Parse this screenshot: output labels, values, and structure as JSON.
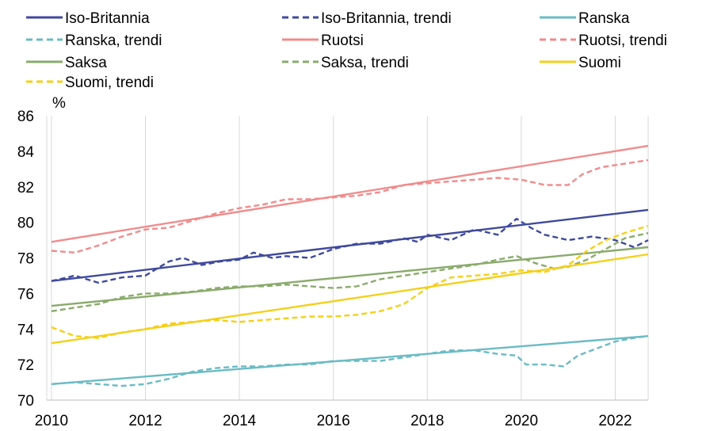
{
  "chart_data": {
    "type": "line",
    "title": "",
    "xlabel": "",
    "ylabel": "%",
    "xlim": [
      2009.9,
      2022.7
    ],
    "ylim": [
      70,
      86
    ],
    "x_ticks": [
      2010,
      2012,
      2014,
      2016,
      2018,
      2020,
      2022
    ],
    "y_ticks": [
      70,
      72,
      74,
      76,
      78,
      80,
      82,
      84,
      86
    ],
    "grid": "vertical",
    "legend": "top",
    "series": [
      {
        "name": "Iso-Britannia",
        "color": "#3f4a9c",
        "dashed": false,
        "points": [
          [
            2010,
            76.7
          ],
          [
            2022.7,
            80.7
          ]
        ]
      },
      {
        "name": "Iso-Britannia, trendi",
        "color": "#3f4a9c",
        "dashed": true,
        "points": [
          [
            2010,
            76.7
          ],
          [
            2010.5,
            77.0
          ],
          [
            2011,
            76.6
          ],
          [
            2011.5,
            76.9
          ],
          [
            2012,
            77.0
          ],
          [
            2012.5,
            77.8
          ],
          [
            2012.8,
            78.0
          ],
          [
            2013.2,
            77.6
          ],
          [
            2013.6,
            77.8
          ],
          [
            2014,
            77.9
          ],
          [
            2014.3,
            78.3
          ],
          [
            2014.7,
            78.0
          ],
          [
            2015,
            78.1
          ],
          [
            2015.5,
            78.0
          ],
          [
            2016,
            78.5
          ],
          [
            2016.5,
            78.8
          ],
          [
            2017,
            78.8
          ],
          [
            2017.5,
            79.1
          ],
          [
            2017.8,
            78.9
          ],
          [
            2018,
            79.3
          ],
          [
            2018.5,
            79.0
          ],
          [
            2019,
            79.6
          ],
          [
            2019.5,
            79.3
          ],
          [
            2019.9,
            80.2
          ],
          [
            2020.2,
            79.7
          ],
          [
            2020.5,
            79.3
          ],
          [
            2021,
            79.0
          ],
          [
            2021.5,
            79.2
          ],
          [
            2022,
            79.0
          ],
          [
            2022.4,
            78.6
          ],
          [
            2022.7,
            79.0
          ]
        ]
      },
      {
        "name": "Ranska",
        "color": "#6bbbc4",
        "dashed": false,
        "points": [
          [
            2010,
            70.9
          ],
          [
            2022.7,
            73.6
          ]
        ]
      },
      {
        "name": "Ranska, trendi",
        "color": "#6bbbc4",
        "dashed": true,
        "points": [
          [
            2010,
            70.9
          ],
          [
            2010.5,
            71.0
          ],
          [
            2011,
            70.9
          ],
          [
            2011.5,
            70.8
          ],
          [
            2012,
            70.9
          ],
          [
            2012.5,
            71.2
          ],
          [
            2013,
            71.6
          ],
          [
            2013.5,
            71.8
          ],
          [
            2014,
            71.9
          ],
          [
            2014.5,
            71.9
          ],
          [
            2015,
            72.0
          ],
          [
            2015.5,
            72.0
          ],
          [
            2016,
            72.2
          ],
          [
            2016.5,
            72.2
          ],
          [
            2017,
            72.2
          ],
          [
            2017.5,
            72.4
          ],
          [
            2018,
            72.6
          ],
          [
            2018.5,
            72.8
          ],
          [
            2019,
            72.8
          ],
          [
            2019.5,
            72.6
          ],
          [
            2019.9,
            72.5
          ],
          [
            2020.1,
            72.0
          ],
          [
            2020.5,
            72.0
          ],
          [
            2020.9,
            71.9
          ],
          [
            2021.2,
            72.5
          ],
          [
            2021.6,
            72.9
          ],
          [
            2022,
            73.3
          ],
          [
            2022.4,
            73.5
          ],
          [
            2022.7,
            73.6
          ]
        ]
      },
      {
        "name": "Ruotsi",
        "color": "#f08c8c",
        "dashed": false,
        "points": [
          [
            2010,
            78.9
          ],
          [
            2022.7,
            84.3
          ]
        ]
      },
      {
        "name": "Ruotsi, trendi",
        "color": "#f08c8c",
        "dashed": true,
        "points": [
          [
            2010,
            78.4
          ],
          [
            2010.5,
            78.3
          ],
          [
            2011,
            78.7
          ],
          [
            2011.5,
            79.2
          ],
          [
            2012,
            79.6
          ],
          [
            2012.5,
            79.7
          ],
          [
            2013,
            80.1
          ],
          [
            2013.5,
            80.5
          ],
          [
            2014,
            80.8
          ],
          [
            2014.5,
            81.0
          ],
          [
            2015,
            81.3
          ],
          [
            2015.5,
            81.3
          ],
          [
            2016,
            81.4
          ],
          [
            2016.5,
            81.5
          ],
          [
            2017,
            81.7
          ],
          [
            2017.5,
            82.1
          ],
          [
            2018,
            82.2
          ],
          [
            2018.5,
            82.3
          ],
          [
            2019,
            82.4
          ],
          [
            2019.5,
            82.5
          ],
          [
            2020,
            82.4
          ],
          [
            2020.5,
            82.1
          ],
          [
            2021,
            82.1
          ],
          [
            2021.3,
            82.7
          ],
          [
            2021.7,
            83.1
          ],
          [
            2022.2,
            83.3
          ],
          [
            2022.7,
            83.5
          ]
        ]
      },
      {
        "name": "Saksa",
        "color": "#8aab6c",
        "dashed": false,
        "points": [
          [
            2010,
            75.3
          ],
          [
            2022.7,
            78.6
          ]
        ]
      },
      {
        "name": "Saksa, trendi",
        "color": "#8aab6c",
        "dashed": true,
        "points": [
          [
            2010,
            75.0
          ],
          [
            2010.5,
            75.2
          ],
          [
            2011,
            75.4
          ],
          [
            2011.5,
            75.8
          ],
          [
            2012,
            76.0
          ],
          [
            2012.5,
            76.0
          ],
          [
            2013,
            76.1
          ],
          [
            2013.5,
            76.3
          ],
          [
            2014,
            76.4
          ],
          [
            2014.5,
            76.4
          ],
          [
            2015,
            76.5
          ],
          [
            2015.5,
            76.4
          ],
          [
            2016,
            76.3
          ],
          [
            2016.5,
            76.4
          ],
          [
            2017,
            76.8
          ],
          [
            2017.5,
            77.0
          ],
          [
            2018,
            77.2
          ],
          [
            2018.5,
            77.4
          ],
          [
            2019,
            77.6
          ],
          [
            2019.5,
            77.9
          ],
          [
            2019.9,
            78.1
          ],
          [
            2020.3,
            77.7
          ],
          [
            2020.7,
            77.4
          ],
          [
            2021,
            77.5
          ],
          [
            2021.4,
            77.9
          ],
          [
            2021.8,
            78.5
          ],
          [
            2022.2,
            79.1
          ],
          [
            2022.7,
            79.4
          ]
        ]
      },
      {
        "name": "Suomi",
        "color": "#f5cf1a",
        "dashed": false,
        "points": [
          [
            2010,
            73.2
          ],
          [
            2022.7,
            78.2
          ]
        ]
      },
      {
        "name": "Suomi, trendi",
        "color": "#f5cf1a",
        "dashed": true,
        "points": [
          [
            2010,
            74.1
          ],
          [
            2010.5,
            73.6
          ],
          [
            2011,
            73.5
          ],
          [
            2011.5,
            73.8
          ],
          [
            2012,
            74.0
          ],
          [
            2012.5,
            74.3
          ],
          [
            2013,
            74.4
          ],
          [
            2013.5,
            74.5
          ],
          [
            2014,
            74.4
          ],
          [
            2014.5,
            74.5
          ],
          [
            2015,
            74.6
          ],
          [
            2015.5,
            74.7
          ],
          [
            2016,
            74.7
          ],
          [
            2016.5,
            74.8
          ],
          [
            2017,
            75.0
          ],
          [
            2017.5,
            75.4
          ],
          [
            2018,
            76.3
          ],
          [
            2018.5,
            76.9
          ],
          [
            2019,
            77.0
          ],
          [
            2019.5,
            77.1
          ],
          [
            2020,
            77.3
          ],
          [
            2020.5,
            77.2
          ],
          [
            2021,
            77.6
          ],
          [
            2021.4,
            78.4
          ],
          [
            2021.8,
            79.0
          ],
          [
            2022.2,
            79.4
          ],
          [
            2022.7,
            79.8
          ]
        ]
      }
    ]
  }
}
